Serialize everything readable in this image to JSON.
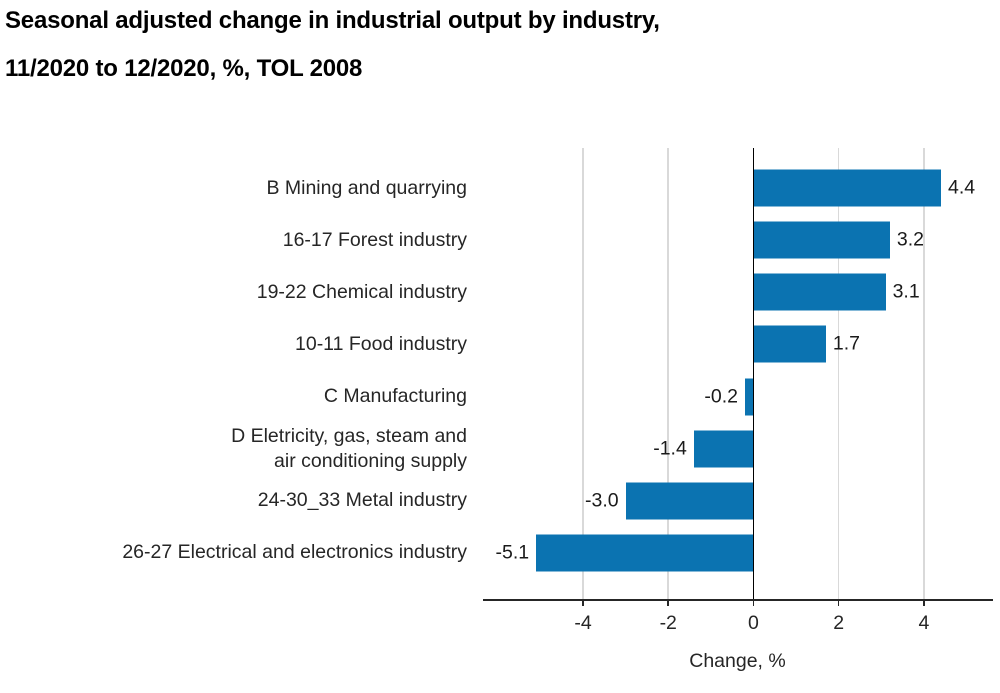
{
  "title": {
    "line1": "Seasonal adjusted change in industrial output by industry,",
    "line2": "11/2020 to 12/2020, %, TOL 2008"
  },
  "chart_data": {
    "type": "bar",
    "orientation": "horizontal",
    "title": "Seasonal adjusted change in industrial output by industry, 11/2020 to 12/2020, %, TOL 2008",
    "categories": [
      "B Mining and quarrying",
      "16-17 Forest industry",
      "19-22 Chemical industry",
      "10-11 Food industry",
      "C Manufacturing",
      "D Eletricity, gas, steam and\nair conditioning supply",
      "24-30_33 Metal industry",
      "26-27 Electrical and electronics industry"
    ],
    "values": [
      4.4,
      3.2,
      3.1,
      1.7,
      -0.2,
      -1.4,
      -3.0,
      -5.1
    ],
    "value_labels": [
      "4.4",
      "3.2",
      "3.1",
      "1.7",
      "-0.2",
      "-1.4",
      "-3.0",
      "-5.1"
    ],
    "xlabel": "Change, %",
    "ylabel": "",
    "xticks": [
      -4,
      -2,
      0,
      2,
      4
    ],
    "xtick_labels": [
      "-4",
      "-2",
      "0",
      "2",
      "4"
    ],
    "xlim": [
      -6.3,
      5.55
    ],
    "grid": true,
    "legend": "none",
    "bar_color": "#0b73b1",
    "grid_color": "#d9d9d9",
    "zero_line_color": "#000000",
    "axis_color": "#262626",
    "text_color": "#262626"
  }
}
